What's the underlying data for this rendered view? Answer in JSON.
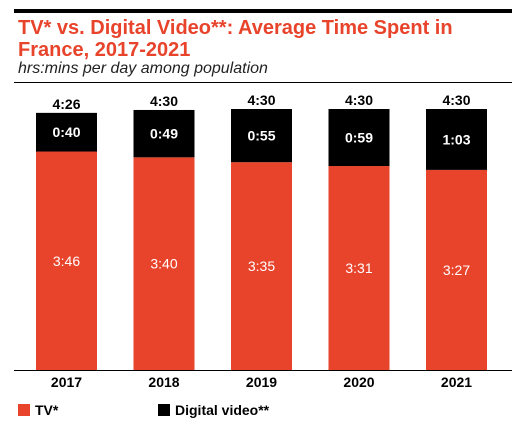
{
  "header": {
    "title": "TV* vs. Digital Video**: Average Time Spent in France, 2017-2021",
    "subtitle": "hrs:mins per day among population"
  },
  "colors": {
    "tv": "#e8432b",
    "digital_video": "#000000",
    "accent": "#e8432b"
  },
  "chart_data": {
    "type": "bar",
    "stacked": true,
    "title": "TV* vs. Digital Video**: Average Time Spent in France, 2017-2021",
    "subtitle": "hrs:mins per day among population",
    "unit": "hrs:mins",
    "categories": [
      "2017",
      "2018",
      "2019",
      "2020",
      "2021"
    ],
    "series": [
      {
        "name": "TV*",
        "values": [
          226,
          220,
          215,
          211,
          207
        ],
        "labels": [
          "3:46",
          "3:40",
          "3:35",
          "3:31",
          "3:27"
        ]
      },
      {
        "name": "Digital video**",
        "values": [
          40,
          49,
          55,
          59,
          63
        ],
        "labels": [
          "0:40",
          "0:49",
          "0:55",
          "0:59",
          "1:03"
        ]
      }
    ],
    "totals": {
      "values": [
        266,
        270,
        270,
        270,
        270
      ],
      "labels": [
        "4:26",
        "4:30",
        "4:30",
        "4:30",
        "4:30"
      ]
    },
    "ylim": [
      0,
      270
    ],
    "legend_position": "bottom-left"
  }
}
